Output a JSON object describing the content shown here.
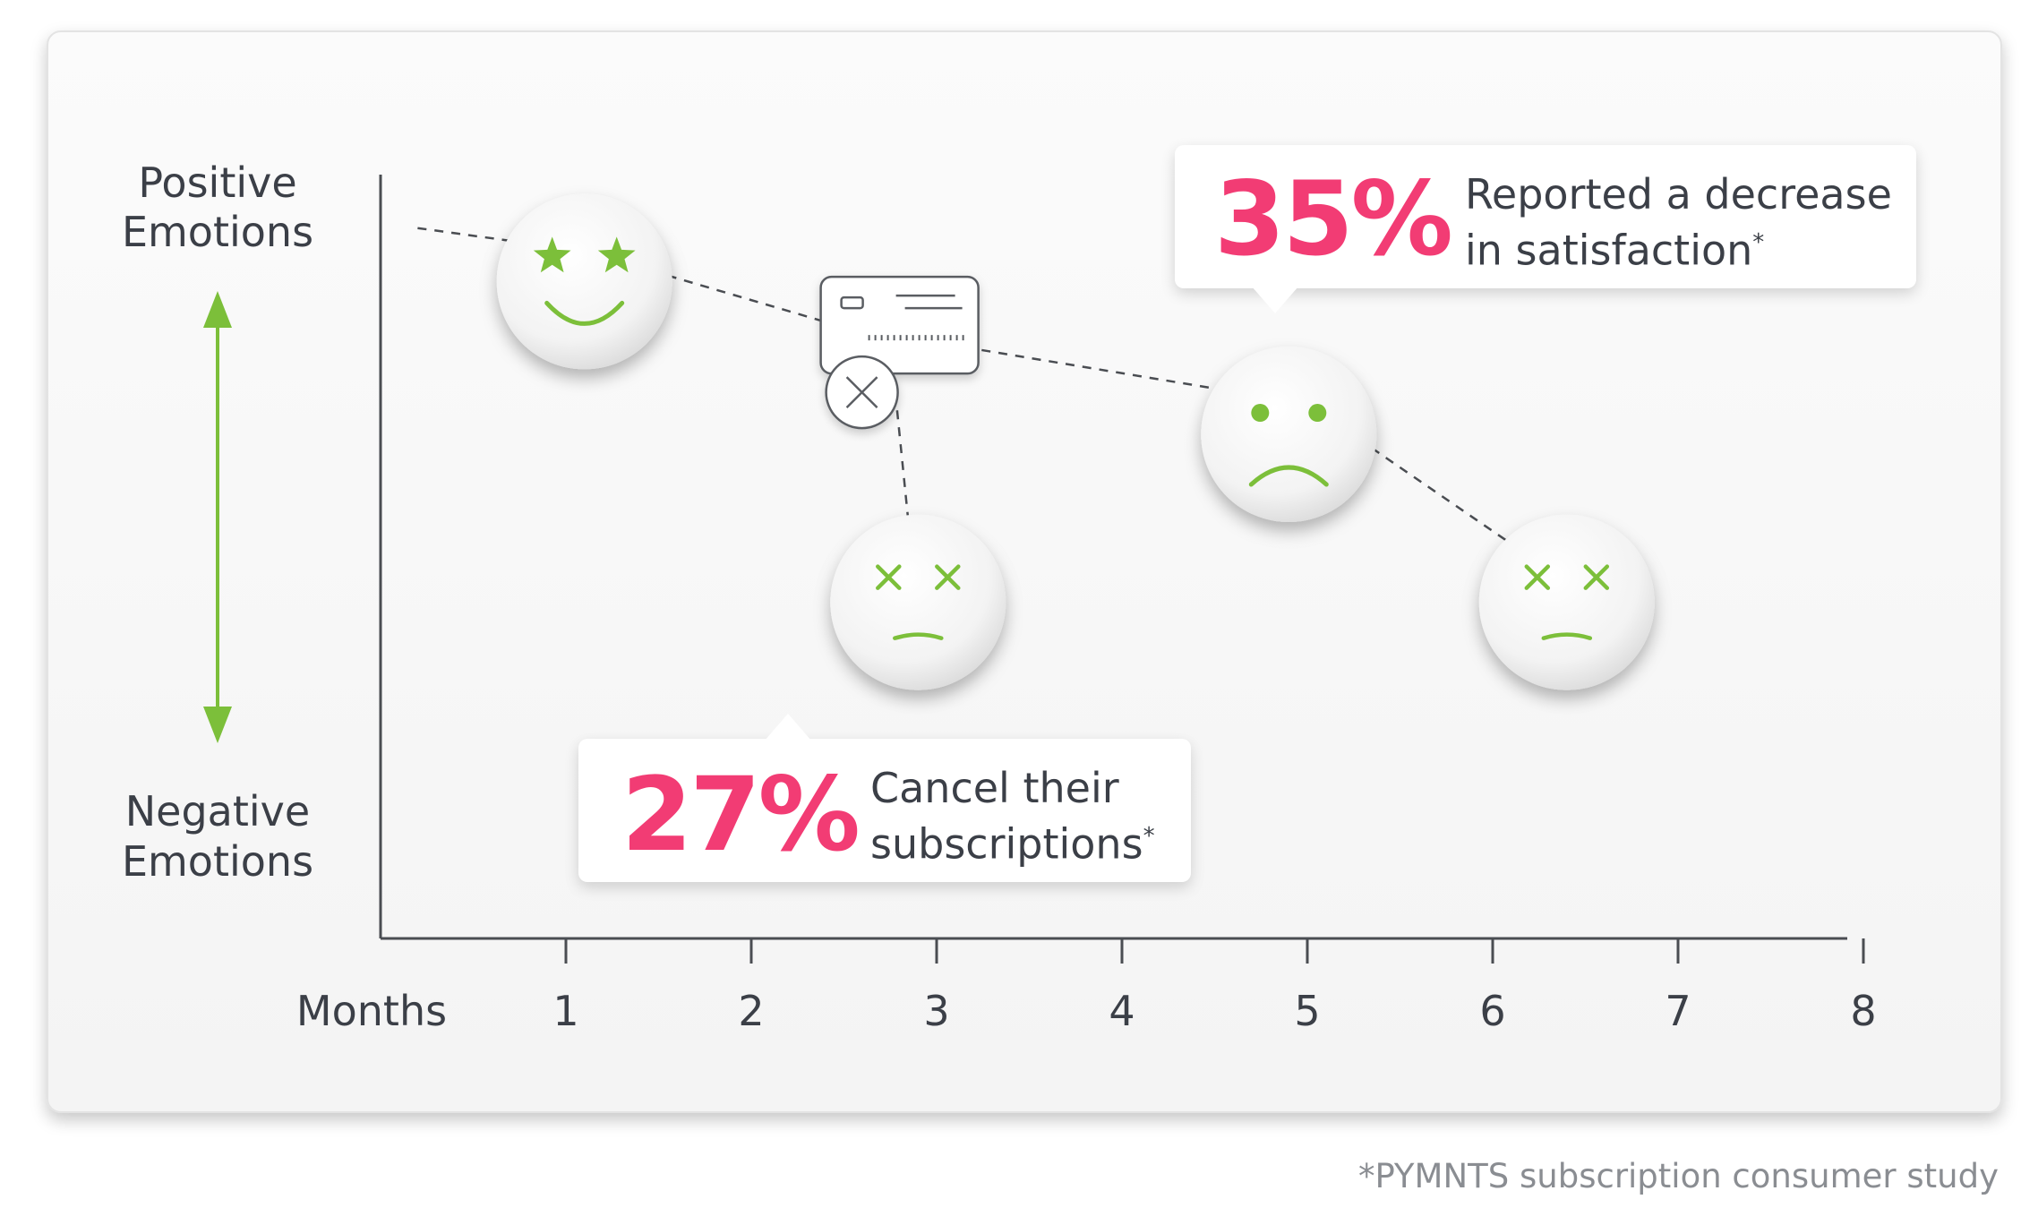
{
  "colors": {
    "accent": "#f23c74",
    "green": "#7cbf3a",
    "text": "#3b3f47",
    "muted": "#8a8d92"
  },
  "chart_data": {
    "type": "scatter",
    "xlabel": "Months",
    "ylabel_top": [
      "Positive",
      "Emotions"
    ],
    "ylabel_bottom": [
      "Negative",
      "Emotions"
    ],
    "x_ticks": [
      1,
      2,
      3,
      4,
      5,
      6,
      7,
      8
    ],
    "xlim": [
      0,
      8
    ],
    "trend_points": [
      {
        "month": 0.2,
        "emotion": 0.93
      },
      {
        "month": 1.1,
        "emotion": 0.9
      },
      {
        "month": 2.5,
        "emotion": 0.8
      },
      {
        "month": 5.0,
        "emotion": 0.7
      },
      {
        "month": 6.5,
        "emotion": 0.45
      }
    ],
    "cancel_path": [
      {
        "month": 2.75,
        "emotion": 0.78
      },
      {
        "month": 2.9,
        "emotion": 0.42
      }
    ],
    "markers": [
      {
        "name": "happy-star-face",
        "face": "star-eyes-smile",
        "month": 1.1,
        "emotion": 0.86
      },
      {
        "name": "credit-card-cancel",
        "face": "card-cancel-icon",
        "month": 2.8,
        "emotion": 0.79
      },
      {
        "name": "cancelled-face",
        "face": "x-eyes-flat",
        "month": 2.9,
        "emotion": 0.44
      },
      {
        "name": "sad-face",
        "face": "dot-eyes-frown",
        "month": 4.9,
        "emotion": 0.66
      },
      {
        "name": "unhappy-face",
        "face": "x-eyes-flat",
        "month": 6.4,
        "emotion": 0.44
      }
    ],
    "annotations": [
      {
        "id": "decrease",
        "value": "35%",
        "line1": "Reported a decrease",
        "line2": "in satisfaction",
        "mark": "*"
      },
      {
        "id": "cancel",
        "value": "27%",
        "line1": "Cancel their",
        "line2": "subscriptions",
        "mark": "*"
      }
    ]
  },
  "footnote": "*PYMNTS subscription consumer study"
}
